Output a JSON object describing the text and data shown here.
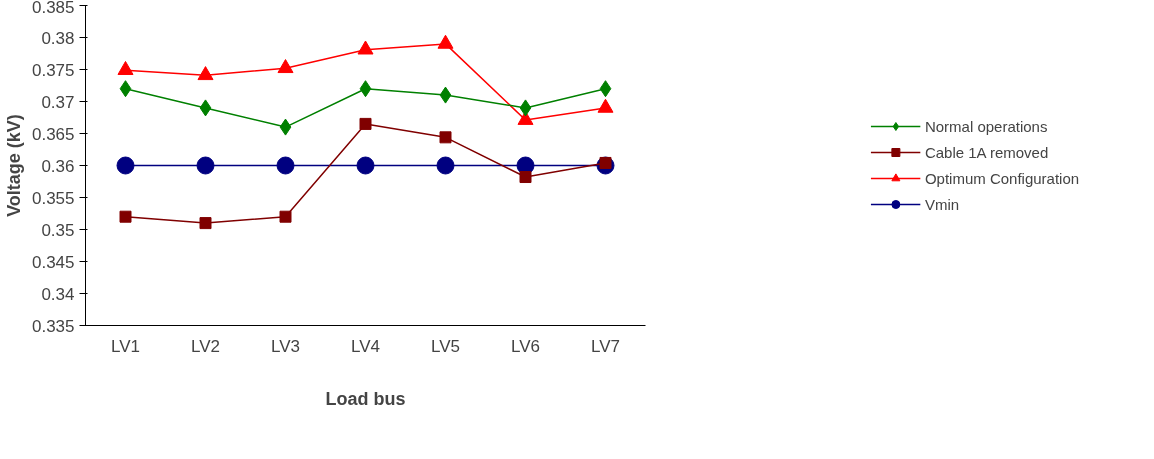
{
  "chart_data": {
    "type": "line",
    "xlabel": "Load bus",
    "ylabel": "Voltage (kV)",
    "categories": [
      "LV1",
      "LV2",
      "LV3",
      "LV4",
      "LV5",
      "LV6",
      "LV7"
    ],
    "series": [
      {
        "name": "Normal operations",
        "color": "#008000",
        "marker": "diamond",
        "values": [
          0.372,
          0.369,
          0.366,
          0.372,
          0.371,
          0.369,
          0.372
        ]
      },
      {
        "name": "Cable 1A removed",
        "color": "#800000",
        "marker": "square",
        "values": [
          0.352,
          0.351,
          0.352,
          0.3665,
          0.3644,
          0.3582,
          0.3604
        ]
      },
      {
        "name": "Optimum Configuration",
        "color": "#ff0000",
        "marker": "triangle",
        "values": [
          0.3749,
          0.3741,
          0.3752,
          0.3781,
          0.379,
          0.3671,
          0.369
        ]
      },
      {
        "name": "Vmin",
        "color": "#000080",
        "marker": "circle",
        "values": [
          0.36,
          0.36,
          0.36,
          0.36,
          0.36,
          0.36,
          0.36
        ]
      }
    ],
    "ylim": [
      0.335,
      0.385
    ],
    "yticks": [
      0.335,
      0.34,
      0.345,
      0.35,
      0.355,
      0.36,
      0.365,
      0.37,
      0.375,
      0.38,
      0.385
    ],
    "grid": false,
    "legend": "right"
  }
}
